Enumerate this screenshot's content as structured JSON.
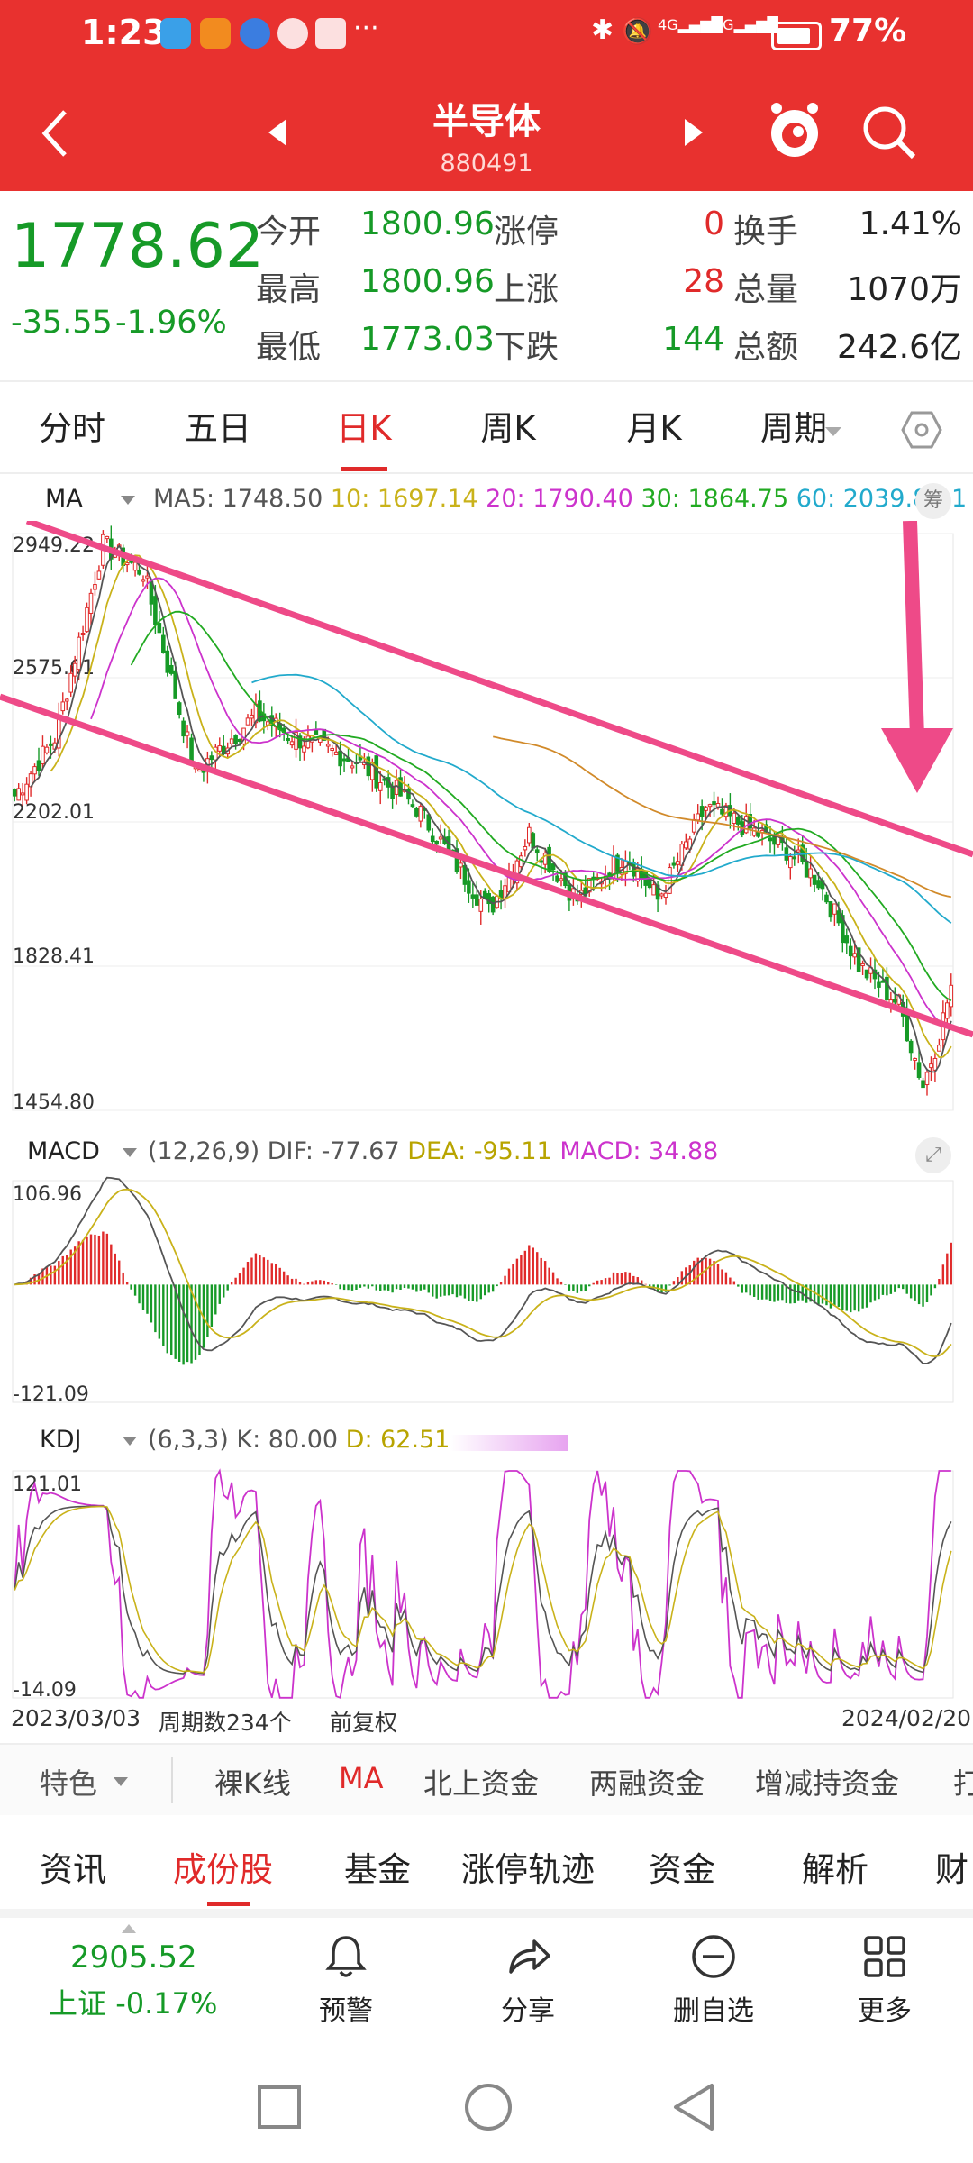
{
  "status_bar": {
    "time": "1:23",
    "battery_pct": "77%",
    "signal_labels": [
      "4G",
      "4G"
    ]
  },
  "header": {
    "title": "半导体",
    "code": "880491"
  },
  "quote": {
    "price": "1778.62",
    "change": "-35.55",
    "change_pct": "-1.96%",
    "rows": [
      {
        "k1": "今开",
        "v1": "1800.96",
        "k2": "涨停",
        "v2": "0",
        "k3": "换手",
        "v3": "1.41%"
      },
      {
        "k1": "最高",
        "v1": "1800.96",
        "k2": "上涨",
        "v2": "28",
        "k3": "总量",
        "v3": "1070万"
      },
      {
        "k1": "最低",
        "v1": "1773.03",
        "k2": "下跌",
        "v2": "144",
        "k3": "总额",
        "v3": "242.6亿"
      }
    ]
  },
  "period_tabs": [
    "分时",
    "五日",
    "日K",
    "周K",
    "月K",
    "周期"
  ],
  "active_period": "日K",
  "ma_legend": {
    "label": "MA",
    "items": [
      {
        "text": "MA5: 1748.50",
        "color": "#555555"
      },
      {
        "text": "10: 1697.14",
        "color": "#c9b21a"
      },
      {
        "text": "20: 1790.40",
        "color": "#cc33cc"
      },
      {
        "text": "30: 1864.75",
        "color": "#22aa22"
      },
      {
        "text": "60: 2039.88",
        "color": "#22aacc"
      },
      {
        "text": "1",
        "color": "#22aacc"
      }
    ],
    "badge": "筹"
  },
  "macd_legend": {
    "label": "MACD",
    "params": "(12,26,9)",
    "dif": "DIF: -77.67",
    "dea": "DEA: -95.11",
    "macd": "MACD: 34.88"
  },
  "kdj_legend": {
    "label": "KDJ",
    "params": "(6,3,3)",
    "k": "K: 80.00",
    "d": "D: 62.51"
  },
  "chart_footer": {
    "start": "2023/03/03",
    "count": "周期数234个",
    "adjust": "前复权",
    "end": "2024/02/20"
  },
  "indicator_tabs": [
    "特色",
    "裸K线",
    "MA",
    "北上资金",
    "两融资金",
    "增减持资金",
    "打"
  ],
  "active_indicator": "MA",
  "section_tabs": [
    "资讯",
    "成份股",
    "基金",
    "涨停轨迹",
    "资金",
    "解析",
    "财"
  ],
  "active_section": "成份股",
  "bottom_nav": {
    "index_value": "2905.52",
    "index_name": "上证",
    "index_change": "-0.17%",
    "items": [
      {
        "label": "预警",
        "icon": "bell-icon"
      },
      {
        "label": "分享",
        "icon": "share-icon"
      },
      {
        "label": "删自选",
        "icon": "minus-circle-icon"
      },
      {
        "label": "更多",
        "icon": "grid-icon"
      }
    ]
  },
  "colors": {
    "brand_red": "#e8312f",
    "up": "#e02a2a",
    "down": "#169a27",
    "annotation_pink": "#ee4a88"
  },
  "chart_data": [
    {
      "type": "candlestick",
      "title": "半导体 日K",
      "x_start": "2023/03/03",
      "x_end": "2024/02/20",
      "periods": 234,
      "y_ticks": [
        2949.22,
        2575.61,
        2202.01,
        1828.41,
        1454.8
      ],
      "ylim": [
        1454.8,
        2949.22
      ],
      "close_path": [
        {
          "t": 0,
          "c": 2270
        },
        {
          "t": 10,
          "c": 2420
        },
        {
          "t": 22,
          "c": 2920
        },
        {
          "t": 32,
          "c": 2850
        },
        {
          "t": 45,
          "c": 2330
        },
        {
          "t": 60,
          "c": 2480
        },
        {
          "t": 70,
          "c": 2420
        },
        {
          "t": 85,
          "c": 2360
        },
        {
          "t": 100,
          "c": 2240
        },
        {
          "t": 118,
          "c": 1970
        },
        {
          "t": 128,
          "c": 2170
        },
        {
          "t": 140,
          "c": 2000
        },
        {
          "t": 152,
          "c": 2120
        },
        {
          "t": 160,
          "c": 2000
        },
        {
          "t": 172,
          "c": 2240
        },
        {
          "t": 180,
          "c": 2200
        },
        {
          "t": 192,
          "c": 2130
        },
        {
          "t": 200,
          "c": 2050
        },
        {
          "t": 210,
          "c": 1830
        },
        {
          "t": 220,
          "c": 1730
        },
        {
          "t": 226,
          "c": 1520
        },
        {
          "t": 230,
          "c": 1650
        },
        {
          "t": 233,
          "c": 1778.62
        }
      ],
      "ma_last": {
        "MA5": 1748.5,
        "MA10": 1697.14,
        "MA20": 1790.4,
        "MA30": 1864.75,
        "MA60": 2039.88
      }
    },
    {
      "type": "bar",
      "title": "MACD (12,26,9)",
      "ylim": [
        -121.09,
        106.96
      ],
      "last": {
        "DIF": -77.67,
        "DEA": -95.11,
        "MACD": 34.88
      }
    },
    {
      "type": "line",
      "title": "KDJ (6,3,3)",
      "ylim": [
        -14.09,
        121.01
      ],
      "last": {
        "K": 80.0,
        "D": 62.51
      }
    }
  ]
}
